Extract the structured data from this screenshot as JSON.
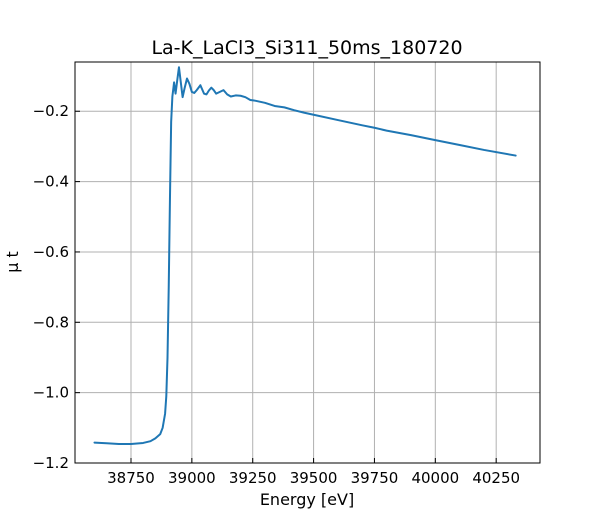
{
  "chart_data": {
    "type": "line",
    "title": "La-K_LaCl3_Si311_50ms_180720",
    "xlabel": "Energy [eV]",
    "ylabel": "μ t",
    "xlim": [
      38520,
      40430
    ],
    "ylim": [
      -1.2,
      -0.06
    ],
    "x_ticks": [
      38750,
      39000,
      39250,
      39500,
      39750,
      40000,
      40250
    ],
    "y_ticks": [
      -1.2,
      -1.0,
      -0.8,
      -0.6,
      -0.4,
      -0.2
    ],
    "grid": true,
    "colors": {
      "line": "#1f77b4",
      "grid": "#b0b0b0",
      "frame": "#000000"
    },
    "series": [
      {
        "x": [
          38600,
          38650,
          38700,
          38750,
          38800,
          38830,
          38850,
          38870,
          38880,
          38890,
          38895,
          38900,
          38905,
          38910,
          38915,
          38920,
          38927,
          38933,
          38940,
          38947,
          38955,
          38962,
          38970,
          38980,
          38990,
          39000,
          39010,
          39020,
          39035,
          39050,
          39060,
          39070,
          39080,
          39090,
          39100,
          39115,
          39130,
          39145,
          39160,
          39180,
          39200,
          39220,
          39240,
          39260,
          39300,
          39340,
          39380,
          39420,
          39460,
          39500,
          39600,
          39700,
          39750,
          39800,
          39900,
          40000,
          40100,
          40200,
          40330
        ],
        "y": [
          -1.142,
          -1.144,
          -1.146,
          -1.146,
          -1.143,
          -1.138,
          -1.13,
          -1.118,
          -1.1,
          -1.06,
          -1.01,
          -0.9,
          -0.7,
          -0.45,
          -0.23,
          -0.158,
          -0.118,
          -0.15,
          -0.112,
          -0.075,
          -0.12,
          -0.16,
          -0.135,
          -0.107,
          -0.122,
          -0.145,
          -0.148,
          -0.14,
          -0.126,
          -0.15,
          -0.152,
          -0.141,
          -0.133,
          -0.14,
          -0.15,
          -0.145,
          -0.14,
          -0.152,
          -0.158,
          -0.155,
          -0.156,
          -0.16,
          -0.168,
          -0.17,
          -0.176,
          -0.185,
          -0.189,
          -0.197,
          -0.204,
          -0.21,
          -0.225,
          -0.24,
          -0.247,
          -0.255,
          -0.268,
          -0.282,
          -0.296,
          -0.31,
          -0.326
        ]
      }
    ]
  }
}
